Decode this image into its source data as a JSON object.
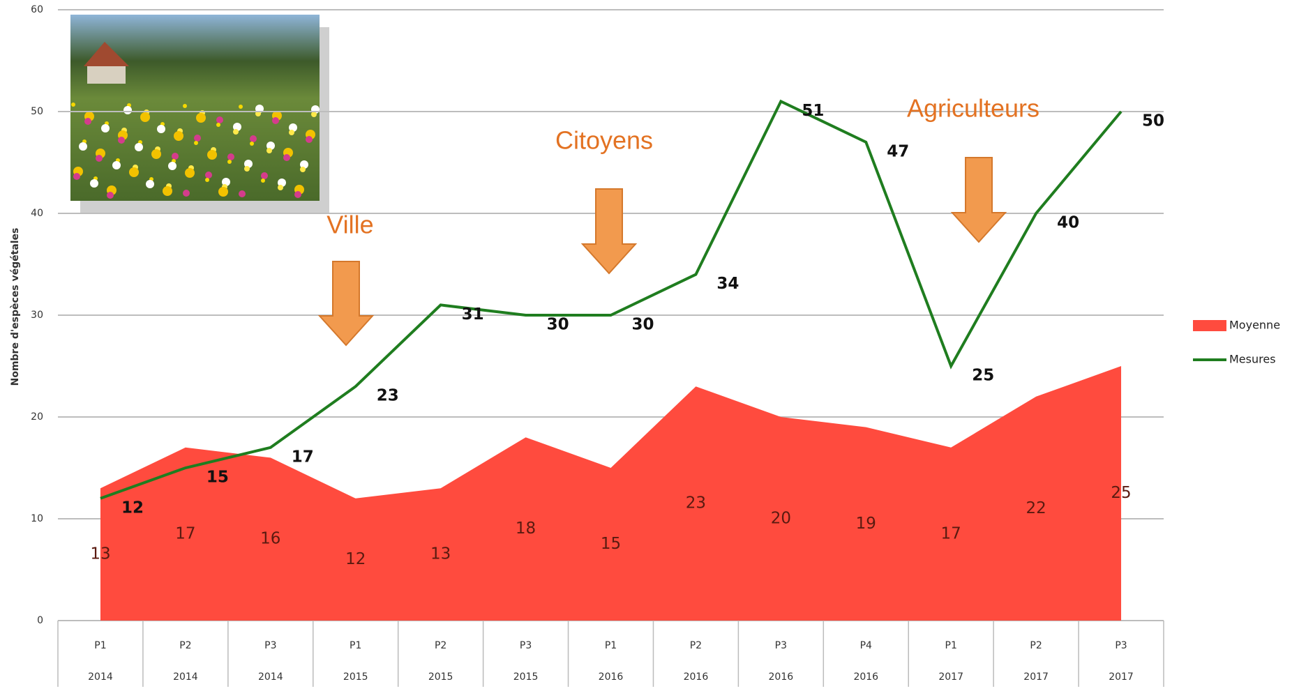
{
  "chart_data": {
    "type": "area-line",
    "y_axis_label": "Nombre d'espèces végétales",
    "categories": [
      "P1",
      "P2",
      "P3",
      "P1",
      "P2",
      "P3",
      "P1",
      "P2",
      "P3",
      "P4",
      "P1",
      "P2",
      "P3"
    ],
    "category_groups": [
      "2014",
      "2014",
      "2014",
      "2015",
      "2015",
      "2015",
      "2016",
      "2016",
      "2016",
      "2016",
      "2017",
      "2017",
      "2017"
    ],
    "series": [
      {
        "name": "Moyenne",
        "kind": "area",
        "color": "#ff4b3e",
        "label_color": "#5a1a10",
        "values": [
          13,
          17,
          16,
          12,
          13,
          18,
          15,
          23,
          20,
          19,
          17,
          22,
          25
        ]
      },
      {
        "name": "Mesures",
        "kind": "line",
        "color": "#1f7d1f",
        "label_color": "#111111",
        "values": [
          12,
          15,
          17,
          23,
          31,
          30,
          30,
          34,
          51,
          47,
          25,
          40,
          50
        ]
      }
    ],
    "ylim": [
      0,
      60
    ],
    "yticks": [
      0,
      10,
      20,
      30,
      40,
      50,
      60
    ],
    "grid": true,
    "legend": "right",
    "annotations": [
      "Ville",
      "Citoyens",
      "Agriculteurs"
    ]
  }
}
